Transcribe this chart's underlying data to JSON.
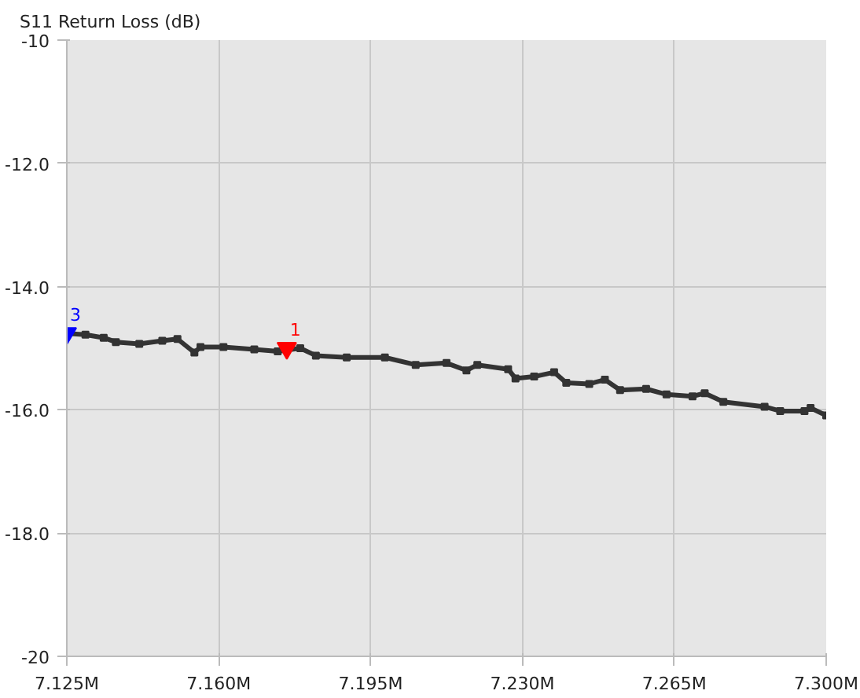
{
  "chart_data": {
    "type": "line",
    "ylabel": "S11 Return Loss (dB)",
    "xlim": [
      7.125,
      7.3
    ],
    "xticks": [
      {
        "value": 7.125,
        "label": "7.125M"
      },
      {
        "value": 7.16,
        "label": "7.160M"
      },
      {
        "value": 7.195,
        "label": "7.195M"
      },
      {
        "value": 7.23,
        "label": "7.230M"
      },
      {
        "value": 7.265,
        "label": "7.265M"
      },
      {
        "value": 7.3,
        "label": "7.300M"
      }
    ],
    "ylim": [
      -20,
      -10
    ],
    "yticks": [
      -20,
      {
        "value": -18,
        "label": "-18.0"
      },
      {
        "value": -16,
        "label": "-16.0"
      },
      {
        "value": -14,
        "label": "-14.0"
      },
      {
        "value": -12,
        "label": "-12.0"
      },
      -10
    ],
    "grid": true,
    "marker": "square",
    "line_style": "solid",
    "series": [
      {
        "color": "#333333",
        "x": [
          7.125,
          7.1293,
          7.1335,
          7.1363,
          7.1417,
          7.147,
          7.1505,
          7.1544,
          7.1558,
          7.1611,
          7.1682,
          7.1736,
          7.1788,
          7.1824,
          7.1895,
          7.1983,
          7.2054,
          7.2125,
          7.2171,
          7.2196,
          7.2267,
          7.2284,
          7.2327,
          7.2373,
          7.2401,
          7.2454,
          7.249,
          7.2525,
          7.2585,
          7.2632,
          7.2692,
          7.272,
          7.2763,
          7.2858,
          7.2894,
          7.295,
          7.2964,
          7.3
        ],
        "values": [
          -14.76,
          -14.78,
          -14.83,
          -14.9,
          -14.93,
          -14.88,
          -14.85,
          -15.07,
          -14.98,
          -14.98,
          -15.02,
          -15.05,
          -15.0,
          -15.12,
          -15.15,
          -15.15,
          -15.27,
          -15.24,
          -15.36,
          -15.27,
          -15.34,
          -15.49,
          -15.46,
          -15.39,
          -15.56,
          -15.58,
          -15.51,
          -15.68,
          -15.66,
          -15.75,
          -15.78,
          -15.73,
          -15.87,
          -15.95,
          -16.02,
          -16.02,
          -15.97,
          -16.09
        ]
      },
      {
        "type": "scatter",
        "marker": "triangle",
        "color": "#0000ff",
        "x": [
          7.125
        ],
        "values": [
          -14.76
        ]
      },
      {
        "type": "scatter",
        "marker": "triangle",
        "color": "#ff0000",
        "x": [
          7.1757
        ],
        "values": [
          -15.0
        ]
      }
    ],
    "annotations": [
      {
        "text": "3",
        "x": 7.125,
        "y": -14.76
      },
      {
        "text": "1",
        "x": 7.1757,
        "y": -15.0
      }
    ]
  }
}
